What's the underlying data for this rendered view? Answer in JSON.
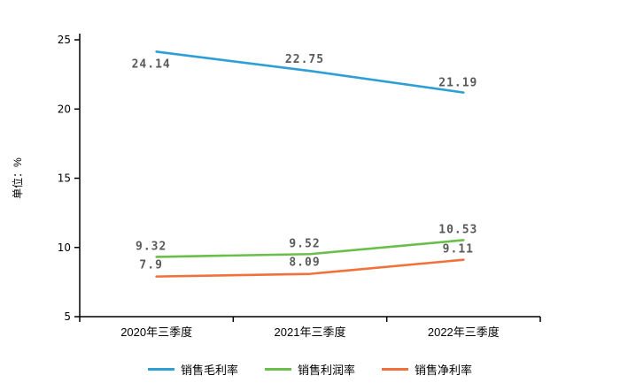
{
  "chart_data": {
    "type": "line",
    "categories": [
      "2020年三季度",
      "2021年三季度",
      "2022年三季度"
    ],
    "series": [
      {
        "name": "销售毛利率",
        "color": "#2d9fd5",
        "values": [
          24.14,
          22.75,
          21.19
        ],
        "labels": [
          "24.14",
          "22.75",
          "21.19"
        ]
      },
      {
        "name": "销售利润率",
        "color": "#6abf4b",
        "values": [
          9.32,
          9.52,
          10.53
        ],
        "labels": [
          "9.32",
          "9.52",
          "10.53"
        ]
      },
      {
        "name": "销售净利率",
        "color": "#f2703a",
        "values": [
          7.9,
          8.09,
          9.11
        ],
        "labels": [
          "7.9",
          "8.09",
          "9.11"
        ]
      }
    ],
    "ylabel": "单位：%",
    "ylim": [
      5,
      25
    ],
    "yticks": [
      5,
      10,
      15,
      20,
      25
    ],
    "grid": false,
    "legend_position": "bottom",
    "axis_color": "#000000",
    "label_color": "#595959"
  }
}
